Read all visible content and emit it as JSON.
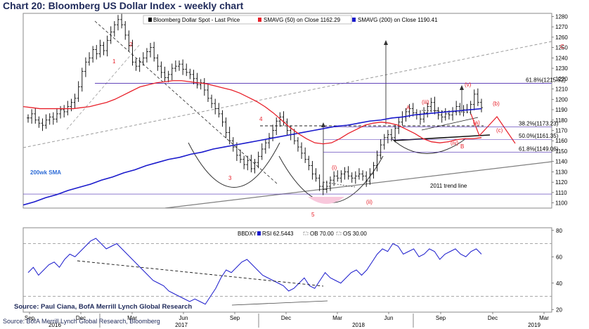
{
  "title": "Chart 20: Bloomberg US Dollar Index - weekly chart",
  "source_bold": "Source: Paul Ciana, BofA Merrill Lynch Global Research",
  "source_footer": "Source: BofA Merrill Lynch Global Research, Bloomberg",
  "colors": {
    "price": "#000000",
    "sma50": "#e8202a",
    "sma200": "#1a1acc",
    "rsi": "#1a1acc",
    "fib": "#4b2bb0",
    "trend_grey": "#7f7f7f",
    "annot_red": "#e8202a",
    "pink_fill": "#f8c8dc"
  },
  "chart_data": [
    {
      "type": "ohlc",
      "panel": "price",
      "legend": [
        {
          "label": "Bloomberg Dollar Spot - Last Price",
          "key": "price"
        },
        {
          "label": "SMAVG (50)  on Close 1162.29",
          "key": "sma50"
        },
        {
          "label": "SMAVG (200)  on Close 1190.41",
          "key": "sma200"
        }
      ],
      "y_ticks": [
        1100,
        1110,
        1120,
        1130,
        1140,
        1150,
        1160,
        1170,
        1180,
        1190,
        1200,
        1210,
        1220,
        1230,
        1240,
        1250,
        1260,
        1270,
        1280
      ],
      "ylim": [
        1095,
        1283
      ],
      "x_month_labels": [
        "Sep",
        "Dec",
        "Mar",
        "Jun",
        "Sep",
        "Dec",
        "Mar",
        "Jun",
        "Sep",
        "Dec",
        "Mar"
      ],
      "x_year_labels": [
        "2016",
        "2017",
        "2018",
        "2019"
      ],
      "close": [
        1182,
        1186,
        1180,
        1177,
        1175,
        1180,
        1183,
        1181,
        1186,
        1190,
        1188,
        1193,
        1197,
        1201,
        1212,
        1227,
        1236,
        1240,
        1248,
        1244,
        1252,
        1247,
        1257,
        1265,
        1272,
        1277,
        1272,
        1262,
        1252,
        1236,
        1232,
        1236,
        1240,
        1246,
        1250,
        1240,
        1232,
        1226,
        1221,
        1224,
        1230,
        1232,
        1234,
        1229,
        1226,
        1224,
        1220,
        1214,
        1216,
        1209,
        1201,
        1196,
        1191,
        1186,
        1178,
        1168,
        1160,
        1154,
        1146,
        1142,
        1137,
        1141,
        1133,
        1139,
        1145,
        1152,
        1158,
        1163,
        1170,
        1179,
        1183,
        1178,
        1170,
        1166,
        1160,
        1154,
        1148,
        1142,
        1136,
        1128,
        1124,
        1116,
        1113,
        1116,
        1122,
        1126,
        1124,
        1128,
        1130,
        1126,
        1124,
        1126,
        1128,
        1126,
        1121,
        1128,
        1136,
        1146,
        1156,
        1163,
        1166,
        1163,
        1172,
        1178,
        1183,
        1188,
        1191,
        1187,
        1185,
        1181,
        1187,
        1193,
        1197,
        1189,
        1185,
        1183,
        1186,
        1185,
        1188,
        1193,
        1189,
        1190,
        1190,
        1195,
        1205,
        1197,
        1192
      ],
      "sma50": [
        1193,
        1192,
        1191,
        1191,
        1191,
        1191,
        1191,
        1192,
        1193,
        1195,
        1197,
        1200,
        1204,
        1208,
        1212,
        1214,
        1216,
        1217,
        1218,
        1218,
        1217,
        1216,
        1215,
        1213,
        1211,
        1209,
        1206,
        1202,
        1198,
        1193,
        1187,
        1180,
        1173,
        1167,
        1162,
        1158,
        1157,
        1158,
        1162,
        1167,
        1171,
        1175,
        1177,
        1178,
        1177,
        1175,
        1171,
        1167,
        1162,
        1159,
        1158,
        1159,
        1161,
        1162,
        1162,
        1163
      ],
      "sma200": [
        1098,
        1101,
        1105,
        1108,
        1112,
        1115,
        1118,
        1122,
        1125,
        1129,
        1132,
        1136,
        1139,
        1142,
        1144,
        1147,
        1149,
        1152,
        1154,
        1156,
        1158,
        1160,
        1162,
        1164,
        1166,
        1168,
        1170,
        1172,
        1174,
        1175,
        1177,
        1179,
        1180,
        1182,
        1183,
        1185,
        1186,
        1187,
        1188,
        1189,
        1190,
        1191
      ],
      "fib_levels": [
        {
          "label": "61.8%(1215.52)",
          "value": 1215.52
        },
        {
          "label": "38.2%(1173.23)",
          "value": 1173.23
        },
        {
          "label": "50.0%(1161.35)",
          "value": 1161.35
        },
        {
          "label": "61.8%(1149.06)",
          "value": 1149.06
        }
      ],
      "annotations": [
        "1",
        "2",
        "3",
        "4",
        "5",
        "A",
        "B",
        "C",
        "(i)",
        "(ii)",
        "(iii)",
        "(iv)",
        "(v)",
        "(a)",
        "(b)",
        "(c)",
        "2011 trend line",
        "200wk SMA"
      ]
    },
    {
      "type": "line",
      "panel": "rsi",
      "legend": [
        {
          "label": "BBDXY",
          "key": "none"
        },
        {
          "label": "RSI 62.5443",
          "key": "rsi"
        },
        {
          "label": "OB 70.00",
          "key": "ob"
        },
        {
          "label": "OS 30.00",
          "key": "os"
        }
      ],
      "y_ticks": [
        20,
        40,
        60,
        80
      ],
      "ylim": [
        18,
        82
      ],
      "levels": {
        "ob": 70,
        "os": 30
      },
      "values": [
        48,
        52,
        46,
        50,
        54,
        56,
        52,
        58,
        62,
        60,
        64,
        68,
        72,
        74,
        70,
        66,
        68,
        70,
        66,
        62,
        58,
        54,
        50,
        46,
        42,
        40,
        38,
        34,
        32,
        30,
        28,
        26,
        28,
        26,
        24,
        30,
        36,
        44,
        50,
        48,
        52,
        56,
        58,
        54,
        50,
        46,
        44,
        42,
        40,
        38,
        34,
        36,
        40,
        44,
        38,
        36,
        42,
        48,
        44,
        42,
        40,
        44,
        48,
        50,
        46,
        50,
        56,
        62,
        66,
        64,
        70,
        68,
        62,
        64,
        66,
        60,
        62,
        66,
        64,
        58,
        62,
        64,
        66,
        62,
        60,
        64,
        66,
        62
      ]
    }
  ]
}
